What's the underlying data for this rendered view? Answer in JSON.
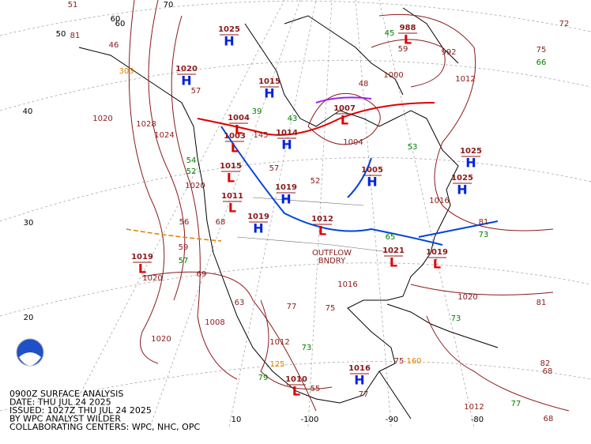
{
  "caption": [
    "0900Z SURFACE ANALYSIS",
    "DATE: THU JUL 24 2025",
    "ISSUED: 1027Z THU JUL 24 2025",
    "BY WPC ANALYST WILDER",
    "COLLABORATING CENTERS: WPC, NHC, OPC"
  ],
  "grid_labels": [
    "70",
    "60",
    "50",
    "40",
    "30",
    "20",
    "10",
    "-100",
    "-90",
    "-80"
  ],
  "pressure_centers": [
    {
      "letter": "H",
      "pressure": "1025"
    },
    {
      "letter": "H",
      "pressure": "1020"
    },
    {
      "letter": "H",
      "pressure": "1015"
    },
    {
      "letter": "H",
      "pressure": "1014"
    },
    {
      "letter": "H",
      "pressure": "1019"
    },
    {
      "letter": "H",
      "pressure": "1019"
    },
    {
      "letter": "H",
      "pressure": "1025"
    },
    {
      "letter": "H",
      "pressure": "1025"
    },
    {
      "letter": "H",
      "pressure": "1016"
    },
    {
      "letter": "H",
      "pressure": "1005"
    },
    {
      "letter": "L",
      "pressure": "1019"
    },
    {
      "letter": "L",
      "pressure": "1010"
    },
    {
      "letter": "L",
      "pressure": "1003"
    },
    {
      "letter": "L",
      "pressure": "1011"
    },
    {
      "letter": "L",
      "pressure": "1007"
    },
    {
      "letter": "L",
      "pressure": "1004"
    },
    {
      "letter": "L",
      "pressure": "1021"
    },
    {
      "letter": "L",
      "pressure": "1019"
    },
    {
      "letter": "L",
      "pressure": "1015"
    },
    {
      "letter": "L",
      "pressure": "1012"
    },
    {
      "letter": "L",
      "pressure": "988"
    }
  ],
  "isobar_labels": [
    "1028",
    "1024",
    "1020",
    "1020",
    "1020",
    "1012",
    "1000",
    "992",
    "1020",
    "1012",
    "1008",
    "1004",
    "1016",
    "1012",
    "1020",
    "1016"
  ],
  "annotations": [
    "OUTFLOW",
    "BNDRY"
  ],
  "station_values": [
    "51",
    "60",
    "81",
    "46",
    "303",
    "57",
    "43",
    "39",
    "52",
    "57",
    "145",
    "54",
    "52",
    "68",
    "56",
    "59",
    "57",
    "69",
    "63",
    "77",
    "75",
    "73",
    "79",
    "125",
    "55",
    "77",
    "75",
    "160",
    "72",
    "75",
    "66",
    "81",
    "73",
    "82",
    "68",
    "81",
    "77",
    "68",
    "45",
    "59",
    "53",
    "73",
    "65",
    "48"
  ]
}
